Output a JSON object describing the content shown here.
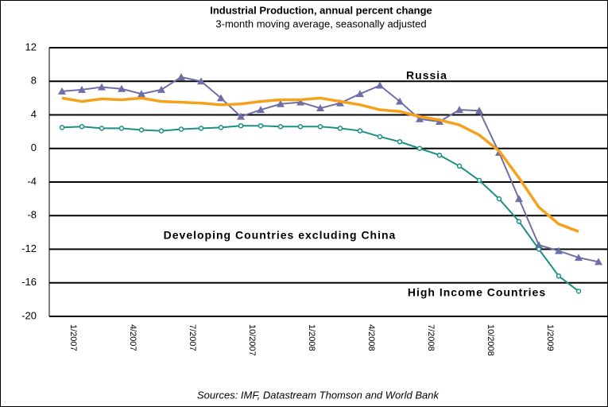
{
  "chart_data": {
    "type": "line",
    "title": "Industrial Production, annual percent change",
    "subtitle": "3-month moving average, seasonally adjusted",
    "source": "Sources: IMF, Datastream Thomson and World Bank",
    "categories": [
      "1/2007",
      null,
      null,
      "4/2007",
      null,
      null,
      "7/2007",
      null,
      null,
      "10/2007",
      null,
      null,
      "1/2008",
      null,
      null,
      "4/2008",
      null,
      null,
      "7/2008",
      null,
      null,
      "10/2008",
      null,
      null,
      "1/2009",
      null,
      null,
      null
    ],
    "series": [
      {
        "name": "Russia",
        "color": "#6f6fa8",
        "marker": "triangle",
        "values": [
          6.8,
          7.0,
          7.3,
          7.1,
          6.5,
          7.0,
          8.5,
          8.0,
          6.0,
          3.8,
          4.6,
          5.3,
          5.5,
          4.8,
          5.4,
          6.5,
          7.5,
          5.6,
          3.5,
          3.2,
          4.6,
          4.5,
          -0.5,
          -6.0,
          -11.5,
          -12.2,
          -13.0,
          -13.5
        ]
      },
      {
        "name": "Developing Countries excluding China",
        "color": "#f5a11c",
        "marker": "none",
        "values": [
          6.0,
          5.6,
          5.9,
          5.8,
          6.0,
          5.6,
          5.5,
          5.4,
          5.2,
          5.3,
          5.6,
          5.8,
          5.8,
          6.0,
          5.6,
          5.2,
          4.6,
          4.4,
          3.8,
          3.4,
          2.8,
          1.6,
          -0.3,
          -3.5,
          -7.0,
          -9.0,
          -9.9,
          null
        ]
      },
      {
        "name": "High Income Countries",
        "color": "#1b9183",
        "marker": "circle",
        "values": [
          2.5,
          2.6,
          2.4,
          2.4,
          2.2,
          2.1,
          2.3,
          2.4,
          2.5,
          2.7,
          2.7,
          2.6,
          2.6,
          2.6,
          2.4,
          2.1,
          1.4,
          0.8,
          0.0,
          -0.8,
          -2.1,
          -3.8,
          -6.0,
          -8.7,
          -12.0,
          -15.2,
          -17.0,
          null
        ]
      }
    ],
    "ylim": [
      -20,
      12
    ],
    "yticks": [
      -20,
      -16,
      -12,
      -8,
      -4,
      0,
      4,
      8,
      12
    ],
    "grid": true
  }
}
